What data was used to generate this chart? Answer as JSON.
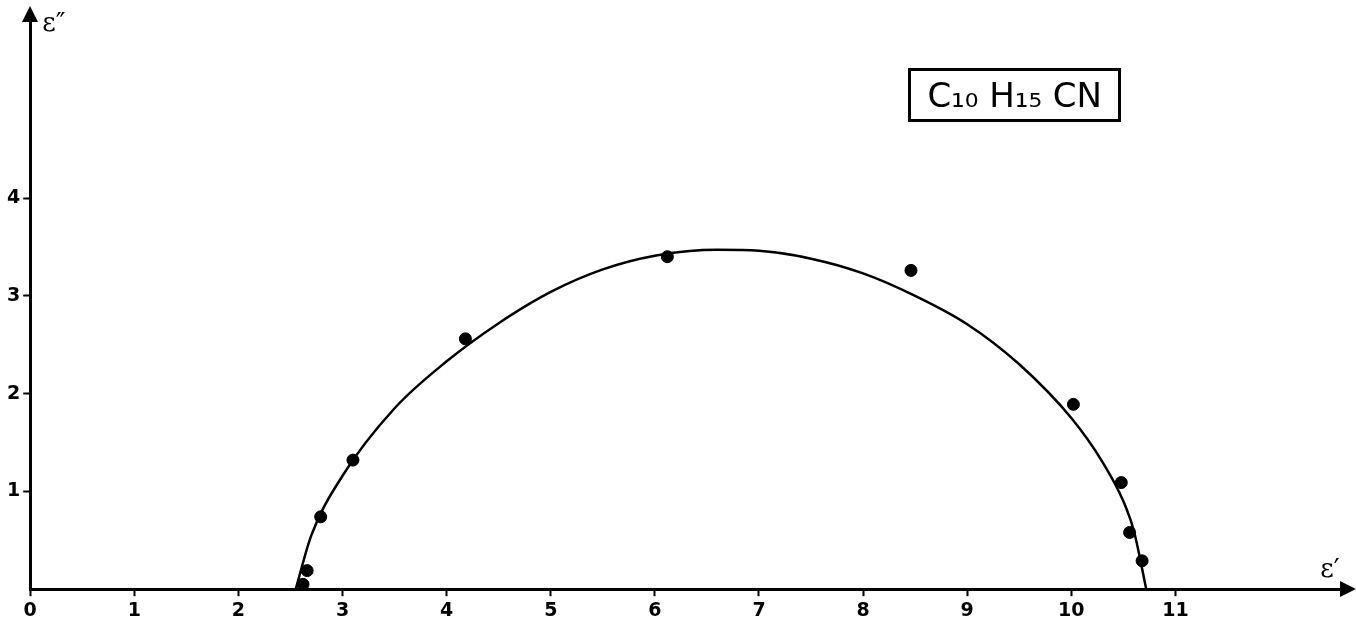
{
  "chart_data": {
    "type": "scatter",
    "xlabel": "ε′",
    "ylabel": "ε″",
    "annotations": [
      "C₁₀ H₁₅ CN"
    ],
    "xlim": [
      0,
      12.6
    ],
    "ylim": [
      0,
      5.8
    ],
    "xticks": [
      0,
      1,
      2,
      3,
      4,
      5,
      6,
      7,
      8,
      9,
      10,
      11
    ],
    "yticks": [
      1,
      2,
      3,
      4
    ],
    "grid": false,
    "series": [
      {
        "type": "scatter",
        "color": "#000000",
        "marker": "circle",
        "x": [
          2.62,
          2.66,
          2.79,
          3.1,
          4.18,
          6.12,
          8.46,
          10.02,
          10.48,
          10.56,
          10.68
        ],
        "values": [
          0.05,
          0.19,
          0.74,
          1.32,
          2.56,
          3.4,
          3.26,
          1.89,
          1.09,
          0.58,
          0.29
        ]
      },
      {
        "type": "line",
        "color": "#000000",
        "marker": "none",
        "x": [
          2.55,
          2.7,
          3,
          3.5,
          4,
          4.5,
          5,
          5.5,
          6,
          6.6,
          7,
          7.5,
          8,
          8.5,
          9,
          9.5,
          10,
          10.3,
          10.5,
          10.6,
          10.72
        ],
        "values": [
          0,
          0.55,
          1.16,
          1.85,
          2.33,
          2.72,
          3.04,
          3.27,
          3.41,
          3.47,
          3.46,
          3.38,
          3.23,
          3.0,
          2.71,
          2.3,
          1.75,
          1.3,
          0.9,
          0.6,
          0
        ]
      }
    ]
  }
}
